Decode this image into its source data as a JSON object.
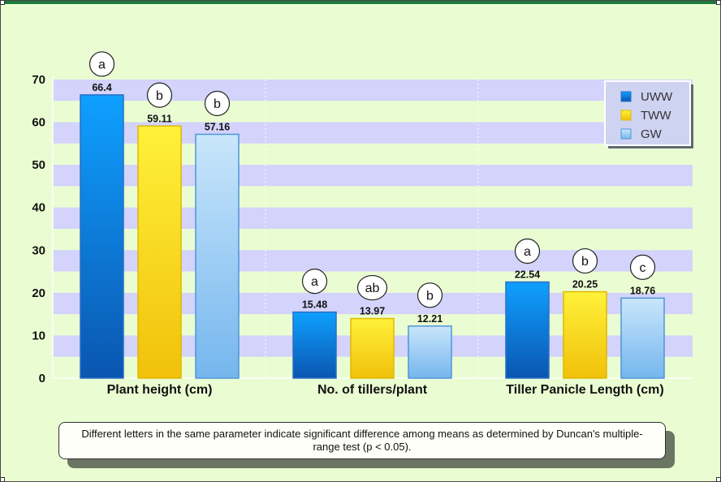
{
  "chart_data": {
    "type": "bar",
    "categories": [
      "Plant height (cm)",
      "No. of tillers/plant",
      "Tiller Panicle Length (cm)"
    ],
    "series": [
      {
        "name": "UWW",
        "values": [
          66.4,
          15.48,
          22.54
        ],
        "value_labels": [
          "66.4",
          "15.48",
          "22.54"
        ],
        "significance": [
          "a",
          "a",
          "a"
        ],
        "color": "#1a7fd8"
      },
      {
        "name": "TWW",
        "values": [
          59.11,
          13.97,
          20.25
        ],
        "value_labels": [
          "59.11",
          "13.97",
          "20.25"
        ],
        "significance": [
          "b",
          "ab",
          "b"
        ],
        "color": "#f5d20e"
      },
      {
        "name": "GW",
        "values": [
          57.16,
          12.21,
          18.76
        ],
        "value_labels": [
          "57.16",
          "12.21",
          "18.76"
        ],
        "significance": [
          "b",
          "b",
          "c"
        ],
        "color": "#a6d0f5"
      }
    ],
    "ylim": [
      0,
      70
    ],
    "yticks": [
      "0",
      "10",
      "20",
      "30",
      "40",
      "50",
      "60",
      "70"
    ],
    "ytick_values": [
      0,
      10,
      20,
      30,
      40,
      50,
      60,
      70
    ],
    "legend_position": "top-right",
    "background_bands": true
  },
  "footnote": "Different letters in the same parameter indicate significant difference among means as determined by Duncan's multiple-range test (p < 0.05).",
  "colors": {
    "background": "#eafdd2",
    "band": "#d3d3fb",
    "uww": "#1a7fd8",
    "tww": "#f5d20e",
    "gw": "#a6d0f5"
  }
}
